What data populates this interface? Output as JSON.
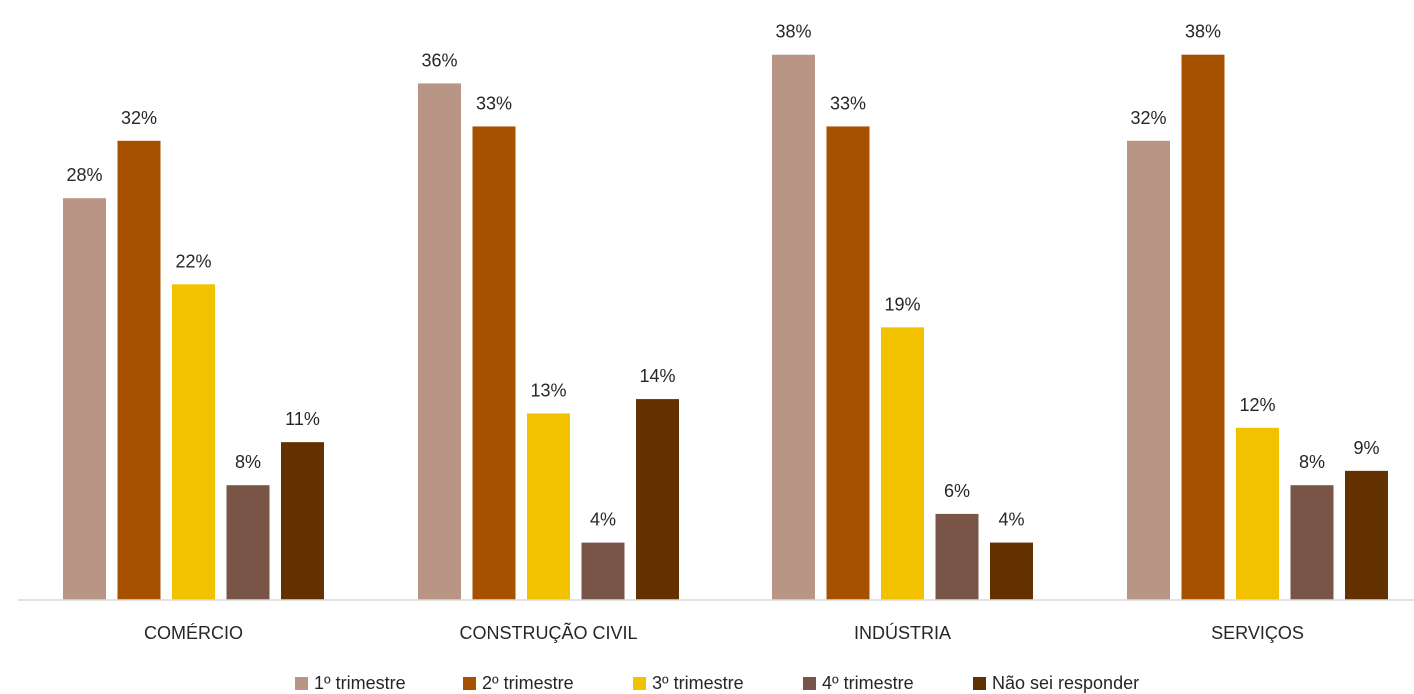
{
  "chart_data": {
    "type": "bar",
    "title": "",
    "xlabel": "",
    "ylabel": "",
    "ylim": [
      0,
      40
    ],
    "grid": false,
    "legend_position": "bottom",
    "categories": [
      "COMÉRCIO",
      "CONSTRUÇÃO CIVIL",
      "INDÚSTRIA",
      "SERVIÇOS"
    ],
    "series": [
      {
        "name": "1º trimestre",
        "color": "#B99585",
        "values": [
          28,
          36,
          38,
          32
        ],
        "labels": [
          "28%",
          "36%",
          "38%",
          "32%"
        ]
      },
      {
        "name": "2º trimestre",
        "color": "#A65100",
        "values": [
          32,
          33,
          33,
          38
        ],
        "labels": [
          "32%",
          "33%",
          "33%",
          "38%"
        ]
      },
      {
        "name": "3º trimestre",
        "color": "#F2C200",
        "values": [
          22,
          13,
          19,
          12
        ],
        "labels": [
          "22%",
          "13%",
          "19%",
          "12%"
        ]
      },
      {
        "name": "4º trimestre",
        "color": "#795548",
        "values": [
          8,
          4,
          6,
          8
        ],
        "labels": [
          "8%",
          "4%",
          "6%",
          "8%"
        ]
      },
      {
        "name": "Não sei responder",
        "color": "#633000",
        "values": [
          11,
          14,
          4,
          9
        ],
        "labels": [
          "11%",
          "14%",
          "4%",
          "9%"
        ]
      }
    ]
  }
}
